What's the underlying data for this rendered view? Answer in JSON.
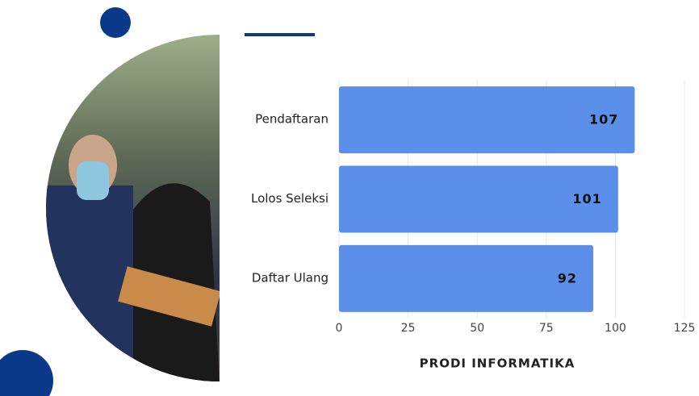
{
  "chart_data": {
    "type": "bar",
    "orientation": "horizontal",
    "categories": [
      "Pendaftaran",
      "Lolos Seleksi",
      "Daftar Ulang"
    ],
    "values": [
      107,
      101,
      92
    ],
    "color": "#5b8fe9",
    "xlim": [
      0,
      125
    ],
    "xticks": [
      0,
      25,
      50,
      75,
      100,
      125
    ],
    "grid": true,
    "x_label": "PRODI INFORMATIKA"
  }
}
